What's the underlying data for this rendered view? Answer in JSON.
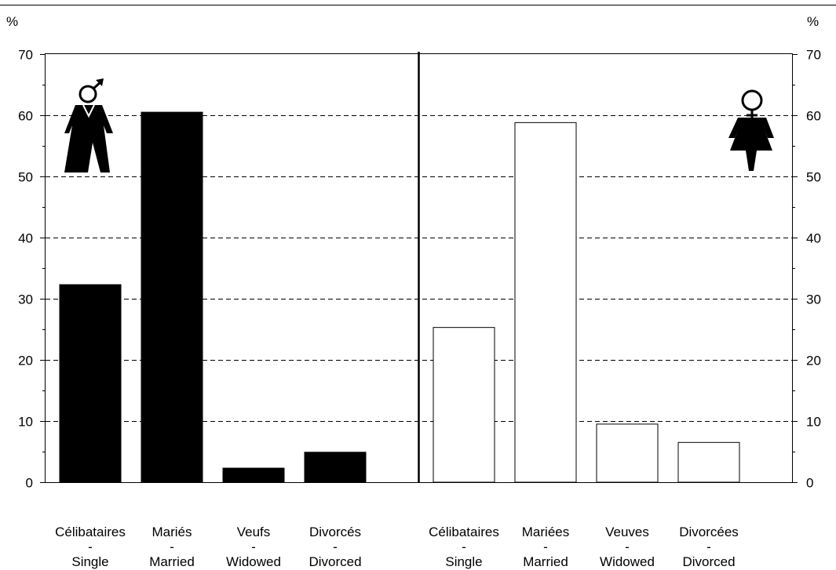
{
  "chart_data": {
    "type": "bar",
    "yunit_left": "%",
    "yunit_right": "%",
    "ylim": [
      0,
      70
    ],
    "yticks": [
      0,
      10,
      20,
      30,
      40,
      50,
      60,
      70
    ],
    "grid": "horizontal-dashed",
    "panels": [
      {
        "group": "male",
        "icon": "male-symbol-icon",
        "fill": "#000000",
        "categories": [
          {
            "fr": "Célibataires",
            "sep": "-",
            "en": "Single",
            "value": 32.3
          },
          {
            "fr": "Mariés",
            "sep": "-",
            "en": "Married",
            "value": 60.5
          },
          {
            "fr": "Veufs",
            "sep": "-",
            "en": "Widowed",
            "value": 2.3
          },
          {
            "fr": "Divorcés",
            "sep": "-",
            "en": "Divorced",
            "value": 4.9
          }
        ]
      },
      {
        "group": "female",
        "icon": "female-symbol-icon",
        "fill": "#ffffff",
        "categories": [
          {
            "fr": "Célibataires",
            "sep": "-",
            "en": "Single",
            "value": 25.3
          },
          {
            "fr": "Mariées",
            "sep": "-",
            "en": "Married",
            "value": 58.8
          },
          {
            "fr": "Veuves",
            "sep": "-",
            "en": "Widowed",
            "value": 9.5
          },
          {
            "fr": "Divorcées",
            "sep": "-",
            "en": "Divorced",
            "value": 6.5
          }
        ]
      }
    ]
  }
}
